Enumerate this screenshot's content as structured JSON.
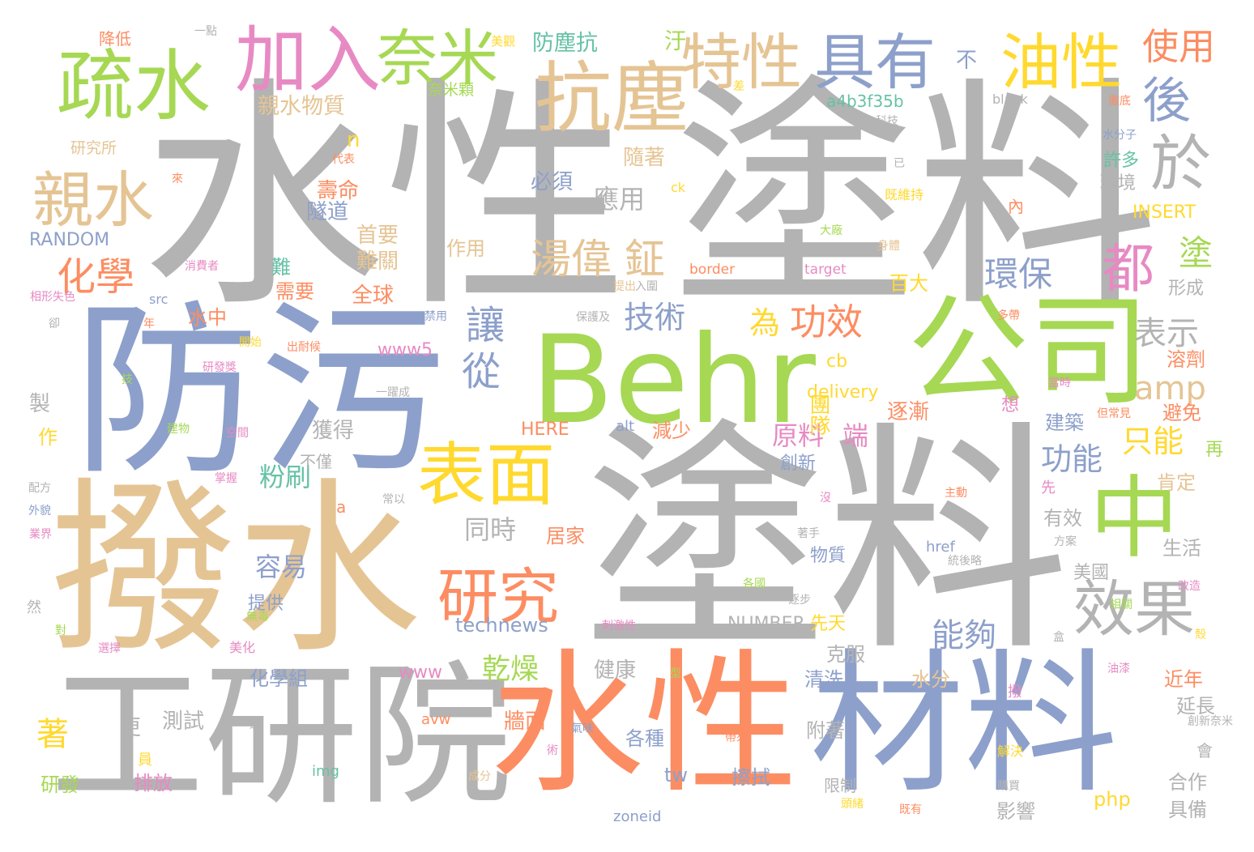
{
  "words": [
    {
      "text": "水性",
      "color": "#b3b3b3"
    },
    {
      "text": "塗料",
      "color": "#b3b3b3"
    },
    {
      "text": "防污",
      "color": "#8da0cb"
    },
    {
      "text": "Behr",
      "color": "#a6d854"
    },
    {
      "text": "公司",
      "color": "#a6d854"
    },
    {
      "text": "撥水",
      "color": "#e5c494"
    },
    {
      "text": "塗料",
      "color": "#b3b3b3"
    },
    {
      "text": "工研院",
      "color": "#b3b3b3"
    },
    {
      "text": "水性",
      "color": "#fc8d62"
    },
    {
      "text": "材料",
      "color": "#8da0cb"
    },
    {
      "text": "疏水",
      "color": "#a6d854"
    },
    {
      "text": "加入",
      "color": "#e78ac3"
    },
    {
      "text": "奈米",
      "color": "#a6d854"
    },
    {
      "text": "抗塵",
      "color": "#e5c494"
    },
    {
      "text": "特性",
      "color": "#e5c494"
    },
    {
      "text": "具有",
      "color": "#8da0cb"
    },
    {
      "text": "油性",
      "color": "#ffd92f"
    },
    {
      "text": "使用",
      "color": "#fc8d62"
    },
    {
      "text": "後",
      "color": "#8da0cb"
    },
    {
      "text": "親水",
      "color": "#e5c494"
    },
    {
      "text": "於",
      "color": "#b3b3b3"
    },
    {
      "text": "都",
      "color": "#e78ac3"
    },
    {
      "text": "中",
      "color": "#a6d854"
    },
    {
      "text": "表面",
      "color": "#ffd92f"
    },
    {
      "text": "研究",
      "color": "#fc8d62"
    },
    {
      "text": "效果",
      "color": "#b3b3b3"
    },
    {
      "text": "湯偉 鉦",
      "color": "#e5c494"
    },
    {
      "text": "讓",
      "color": "#8da0cb"
    },
    {
      "text": "從",
      "color": "#8da0cb"
    },
    {
      "text": "化學",
      "color": "#fc8d62"
    },
    {
      "text": "技術",
      "color": "#8da0cb"
    },
    {
      "text": "為",
      "color": "#ffd92f"
    },
    {
      "text": "功效",
      "color": "#fc8d62"
    },
    {
      "text": "環保",
      "color": "#8da0cb"
    },
    {
      "text": "塗",
      "color": "#a6d854"
    },
    {
      "text": "amp",
      "color": "#e5c494"
    },
    {
      "text": "表示",
      "color": "#b3b3b3"
    },
    {
      "text": "功能",
      "color": "#8da0cb"
    },
    {
      "text": "只能",
      "color": "#ffd92f"
    },
    {
      "text": "能夠",
      "color": "#8da0cb"
    },
    {
      "text": "乾燥",
      "color": "#a6d854"
    },
    {
      "text": "防塵抗",
      "color": "#66c2a5"
    },
    {
      "text": "汙",
      "color": "#a6d854"
    },
    {
      "text": "親水物質",
      "color": "#e5c494"
    },
    {
      "text": "應用",
      "color": "#b3b3b3"
    },
    {
      "text": "原料",
      "color": "#e78ac3"
    },
    {
      "text": "端",
      "color": "#e78ac3"
    },
    {
      "text": "粉刷",
      "color": "#66c2a5"
    },
    {
      "text": "容易",
      "color": "#8da0cb"
    },
    {
      "text": "同時",
      "color": "#b3b3b3"
    },
    {
      "text": "著",
      "color": "#ffd92f"
    },
    {
      "text": "RANDOM",
      "color": "#8da0cb"
    },
    {
      "text": "研究所",
      "color": "#e5c494"
    },
    {
      "text": "奈米顆",
      "color": "#a6d854"
    },
    {
      "text": "a4b3f35b",
      "color": "#66c2a5"
    },
    {
      "text": "不",
      "color": "#8da0cb"
    },
    {
      "text": "n",
      "color": "#ffd92f"
    },
    {
      "text": "隨著",
      "color": "#e5c494"
    },
    {
      "text": "必須",
      "color": "#8da0cb"
    },
    {
      "text": "壽命",
      "color": "#fc8d62"
    },
    {
      "text": "隧道",
      "color": "#8da0cb"
    },
    {
      "text": "首要",
      "color": "#e5c494"
    },
    {
      "text": "難關",
      "color": "#e5c494"
    },
    {
      "text": "作用",
      "color": "#e5c494"
    },
    {
      "text": "許多",
      "color": "#66c2a5"
    },
    {
      "text": "環境",
      "color": "#b3b3b3"
    },
    {
      "text": "INSERT",
      "color": "#ffd92f"
    },
    {
      "text": "百大",
      "color": "#ffd92f"
    },
    {
      "text": "形成",
      "color": "#b3b3b3"
    },
    {
      "text": "需要",
      "color": "#fc8d62"
    },
    {
      "text": "全球",
      "color": "#fc8d62"
    },
    {
      "text": "難",
      "color": "#66c2a5"
    },
    {
      "text": "水中",
      "color": "#fc8d62"
    },
    {
      "text": "www5",
      "color": "#e78ac3"
    },
    {
      "text": "cb",
      "color": "#ffd92f"
    },
    {
      "text": "delivery",
      "color": "#ffd92f"
    },
    {
      "text": "團隊",
      "color": "#ffd92f"
    },
    {
      "text": "溶劑",
      "color": "#fc8d62"
    },
    {
      "text": "避免",
      "color": "#fc8d62"
    },
    {
      "text": "建築",
      "color": "#8da0cb"
    },
    {
      "text": "逐漸",
      "color": "#fc8d62"
    },
    {
      "text": "減少",
      "color": "#fc8d62"
    },
    {
      "text": "獲得",
      "color": "#b3b3b3"
    },
    {
      "text": "不僅",
      "color": "#b3b3b3"
    },
    {
      "text": "創新",
      "color": "#8da0cb"
    },
    {
      "text": "HERE",
      "color": "#fc8d62"
    },
    {
      "text": "alt",
      "color": "#8da0cb"
    },
    {
      "text": "再",
      "color": "#a6d854"
    },
    {
      "text": "肯定",
      "color": "#e5c494"
    },
    {
      "text": "製",
      "color": "#b3b3b3"
    },
    {
      "text": "作",
      "color": "#ffd92f"
    },
    {
      "text": "a",
      "color": "#fc8d62"
    },
    {
      "text": "居家",
      "color": "#fc8d62"
    },
    {
      "text": "有效",
      "color": "#b3b3b3"
    },
    {
      "text": "生活",
      "color": "#b3b3b3"
    },
    {
      "text": "先",
      "color": "#e78ac3"
    },
    {
      "text": "物質",
      "color": "#8da0cb"
    },
    {
      "text": "提供",
      "color": "#8da0cb"
    },
    {
      "text": "technews",
      "color": "#8da0cb"
    },
    {
      "text": "NUMBER",
      "color": "#b3b3b3"
    },
    {
      "text": "先天",
      "color": "#ffd92f"
    },
    {
      "text": "美國",
      "color": "#b3b3b3"
    },
    {
      "text": "克服",
      "color": "#b3b3b3"
    },
    {
      "text": "www",
      "color": "#e78ac3"
    },
    {
      "text": "健康",
      "color": "#b3b3b3"
    },
    {
      "text": "化學組",
      "color": "#8da0cb"
    },
    {
      "text": "清洗",
      "color": "#8da0cb"
    },
    {
      "text": "水分",
      "color": "#e5c494"
    },
    {
      "text": "近年",
      "color": "#fc8d62"
    },
    {
      "text": "延長",
      "color": "#b3b3b3"
    },
    {
      "text": "更",
      "color": "#b3b3b3"
    },
    {
      "text": "測試",
      "color": "#b3b3b3"
    },
    {
      "text": "牆面",
      "color": "#fc8d62"
    },
    {
      "text": "各種",
      "color": "#8da0cb"
    },
    {
      "text": "附著",
      "color": "#b3b3b3"
    },
    {
      "text": "研發",
      "color": "#a6d854"
    },
    {
      "text": "排放",
      "color": "#e78ac3"
    },
    {
      "text": "tw",
      "color": "#8da0cb"
    },
    {
      "text": "擦拭",
      "color": "#8da0cb"
    },
    {
      "text": "php",
      "color": "#ffd92f"
    },
    {
      "text": "影響",
      "color": "#b3b3b3"
    },
    {
      "text": "合作",
      "color": "#b3b3b3"
    },
    {
      "text": "具備",
      "color": "#b3b3b3"
    },
    {
      "text": "會",
      "color": "#b3b3b3"
    },
    {
      "text": "限制",
      "color": "#b3b3b3"
    },
    {
      "text": "zoneid",
      "color": "#8da0cb"
    },
    {
      "text": "img",
      "color": "#66c2a5"
    },
    {
      "text": "avw",
      "color": "#fc8d62"
    },
    {
      "text": "成分",
      "color": "#e5c494"
    },
    {
      "text": "降低",
      "color": "#fc8d62"
    },
    {
      "text": "一點",
      "color": "#b3b3b3"
    },
    {
      "text": "美觀",
      "color": "#ffd92f"
    },
    {
      "text": "差",
      "color": "#ffd92f"
    },
    {
      "text": "blank",
      "color": "#b3b3b3"
    },
    {
      "text": "徹底",
      "color": "#fc8d62"
    },
    {
      "text": "科技",
      "color": "#b3b3b3"
    },
    {
      "text": "水分子",
      "color": "#8da0cb"
    },
    {
      "text": "已",
      "color": "#b3b3b3"
    },
    {
      "text": "既維持",
      "color": "#ffd92f"
    },
    {
      "text": "內",
      "color": "#fc8d62"
    },
    {
      "text": "ck",
      "color": "#ffd92f"
    },
    {
      "text": "代表",
      "color": "#fc8d62"
    },
    {
      "text": "來",
      "color": "#fc8d62"
    },
    {
      "text": "大廠",
      "color": "#a6d854"
    },
    {
      "text": "身體",
      "color": "#e5c494"
    },
    {
      "text": "target",
      "color": "#e78ac3"
    },
    {
      "text": "border",
      "color": "#fc8d62"
    },
    {
      "text": "入圍",
      "color": "#b3b3b3"
    },
    {
      "text": "提出",
      "color": "#e5c494"
    },
    {
      "text": "消費者",
      "color": "#e78ac3"
    },
    {
      "text": "相形失色",
      "color": "#e78ac3"
    },
    {
      "text": "src",
      "color": "#8da0cb"
    },
    {
      "text": "卻",
      "color": "#b3b3b3"
    },
    {
      "text": "年",
      "color": "#fc8d62"
    },
    {
      "text": "禁用",
      "color": "#8da0cb"
    },
    {
      "text": "保護及",
      "color": "#b3b3b3"
    },
    {
      "text": "多帶",
      "color": "#fc8d62"
    },
    {
      "text": "開始",
      "color": "#ffd92f"
    },
    {
      "text": "出耐候",
      "color": "#fc8d62"
    },
    {
      "text": "研發獎",
      "color": "#e78ac3"
    },
    {
      "text": "一躍成",
      "color": "#b3b3b3"
    },
    {
      "text": "當時",
      "color": "#e78ac3"
    },
    {
      "text": "但常見",
      "color": "#fc8d62"
    },
    {
      "text": "想",
      "color": "#e78ac3"
    },
    {
      "text": "技",
      "color": "#a6d854"
    },
    {
      "text": "建物",
      "color": "#a6d854"
    },
    {
      "text": "空間",
      "color": "#e78ac3"
    },
    {
      "text": "掌握",
      "color": "#e78ac3"
    },
    {
      "text": "配方",
      "color": "#b3b3b3"
    },
    {
      "text": "外貌",
      "color": "#8da0cb"
    },
    {
      "text": "常以",
      "color": "#b3b3b3"
    },
    {
      "text": "沒",
      "color": "#e78ac3"
    },
    {
      "text": "主動",
      "color": "#fc8d62"
    },
    {
      "text": "業界",
      "color": "#e78ac3"
    },
    {
      "text": "著手",
      "color": "#b3b3b3"
    },
    {
      "text": "方案",
      "color": "#b3b3b3"
    },
    {
      "text": "href",
      "color": "#8da0cb"
    },
    {
      "text": "統後略",
      "color": "#b3b3b3"
    },
    {
      "text": "各國",
      "color": "#a6d854"
    },
    {
      "text": "改造",
      "color": "#e78ac3"
    },
    {
      "text": "逐步",
      "color": "#b3b3b3"
    },
    {
      "text": "相關",
      "color": "#a6d854"
    },
    {
      "text": "然",
      "color": "#b3b3b3"
    },
    {
      "text": "對",
      "color": "#a6d854"
    },
    {
      "text": "無毒",
      "color": "#a6d854"
    },
    {
      "text": "刺激性",
      "color": "#e78ac3"
    },
    {
      "text": "殼",
      "color": "#ffd92f"
    },
    {
      "text": "選擇",
      "color": "#e78ac3"
    },
    {
      "text": "美化",
      "color": "#e78ac3"
    },
    {
      "text": "型",
      "color": "#a6d854"
    },
    {
      "text": "油漆",
      "color": "#e78ac3"
    },
    {
      "text": "撥",
      "color": "#e78ac3"
    },
    {
      "text": "還",
      "color": "#b3b3b3"
    },
    {
      "text": "員",
      "color": "#ffd92f"
    },
    {
      "text": "氣味",
      "color": "#8da0cb"
    },
    {
      "text": "術",
      "color": "#e78ac3"
    },
    {
      "text": "帶來",
      "color": "#fc8d62"
    },
    {
      "text": "創新奈米",
      "color": "#b3b3b3"
    },
    {
      "text": "解決",
      "color": "#ffd92f"
    },
    {
      "text": "購買",
      "color": "#b3b3b3"
    },
    {
      "text": "頭緒",
      "color": "#ffd92f"
    },
    {
      "text": "既有",
      "color": "#fc8d62"
    },
    {
      "text": "盒",
      "color": "#b3b3b3"
    }
  ]
}
